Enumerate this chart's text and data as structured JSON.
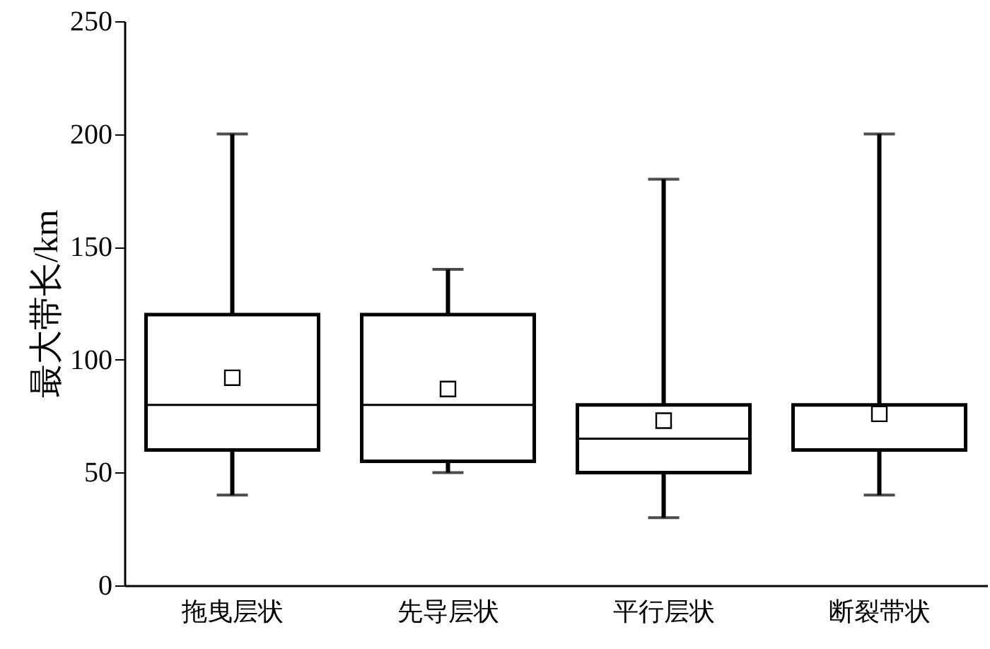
{
  "chart_data": {
    "type": "box",
    "ylabel": "最大带长/km",
    "categories": [
      "拖曳层状",
      "先导层状",
      "平行层状",
      "断裂带状"
    ],
    "boxes": [
      {
        "low": 40,
        "q1": 60,
        "median": 80,
        "q3": 120,
        "high": 200,
        "mean": 92
      },
      {
        "low": 50,
        "q1": 55,
        "median": 80,
        "q3": 120,
        "high": 140,
        "mean": 87
      },
      {
        "low": 30,
        "q1": 50,
        "median": 65,
        "q3": 80,
        "high": 180,
        "mean": 73
      },
      {
        "low": 40,
        "q1": 60,
        "median": 80,
        "q3": 80,
        "high": 200,
        "mean": 76
      }
    ],
    "ylim": [
      0,
      250
    ],
    "yticks": [
      0,
      50,
      100,
      150,
      200,
      250
    ],
    "grid": false
  }
}
